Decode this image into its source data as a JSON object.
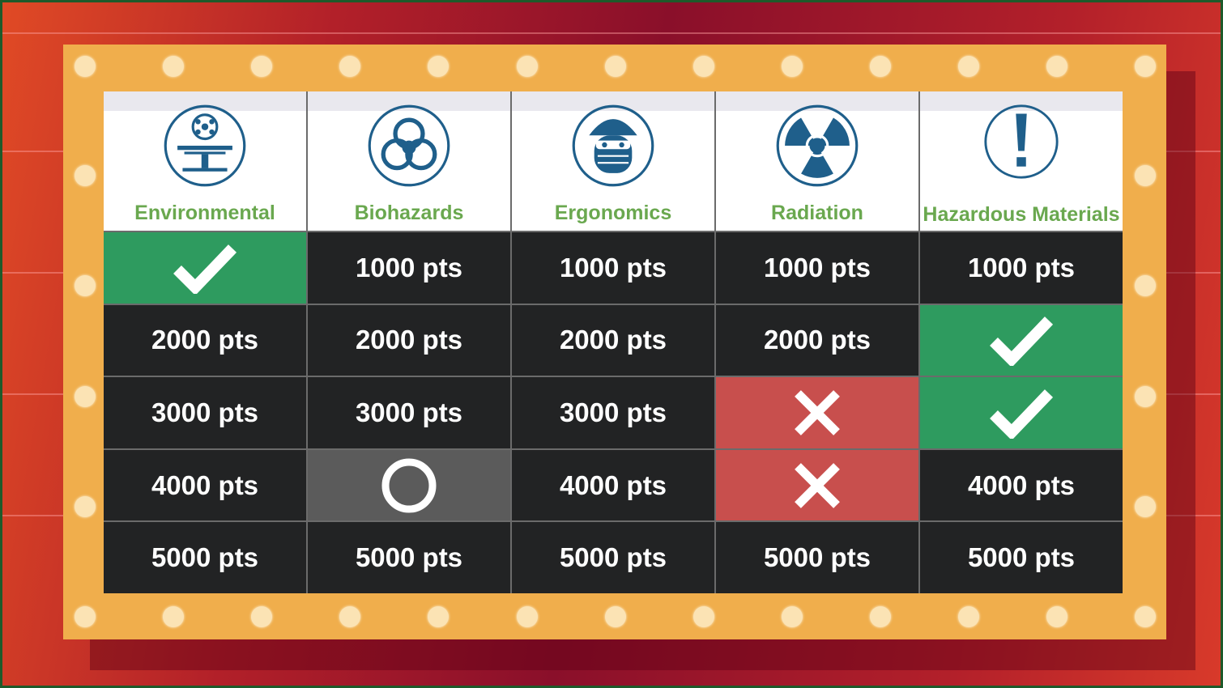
{
  "colors": {
    "correct": "#2e9b5f",
    "wrong": "#c84f4d",
    "selected": "#5b5b5b",
    "open": "#222324",
    "category_text": "#6aa84f",
    "icon": "#1f5f8b",
    "frame": "#f0ae4c"
  },
  "categories": [
    {
      "label": "Environmental",
      "icon": "environmental-station-icon"
    },
    {
      "label": "Biohazards",
      "icon": "biohazard-icon"
    },
    {
      "label": "Ergonomics",
      "icon": "face-mask-icon"
    },
    {
      "label": "Radiation",
      "icon": "radiation-icon"
    },
    {
      "label": "Hazardous Materials",
      "icon": "exclamation-icon"
    }
  ],
  "rows": [
    [
      {
        "state": "correct",
        "text": ""
      },
      {
        "state": "open",
        "text": "1000 pts"
      },
      {
        "state": "open",
        "text": "1000 pts"
      },
      {
        "state": "open",
        "text": "1000 pts"
      },
      {
        "state": "open",
        "text": "1000 pts"
      }
    ],
    [
      {
        "state": "open",
        "text": "2000 pts"
      },
      {
        "state": "open",
        "text": "2000 pts"
      },
      {
        "state": "open",
        "text": "2000 pts"
      },
      {
        "state": "open",
        "text": "2000 pts"
      },
      {
        "state": "correct",
        "text": ""
      }
    ],
    [
      {
        "state": "open",
        "text": "3000 pts"
      },
      {
        "state": "open",
        "text": "3000 pts"
      },
      {
        "state": "open",
        "text": "3000 pts"
      },
      {
        "state": "wrong",
        "text": ""
      },
      {
        "state": "correct",
        "text": ""
      }
    ],
    [
      {
        "state": "open",
        "text": "4000 pts"
      },
      {
        "state": "selected",
        "text": ""
      },
      {
        "state": "open",
        "text": "4000 pts"
      },
      {
        "state": "wrong",
        "text": ""
      },
      {
        "state": "open",
        "text": "4000 pts"
      }
    ],
    [
      {
        "state": "open",
        "text": "5000 pts"
      },
      {
        "state": "open",
        "text": "5000 pts"
      },
      {
        "state": "open",
        "text": "5000 pts"
      },
      {
        "state": "open",
        "text": "5000 pts"
      },
      {
        "state": "open",
        "text": "5000 pts"
      }
    ]
  ]
}
